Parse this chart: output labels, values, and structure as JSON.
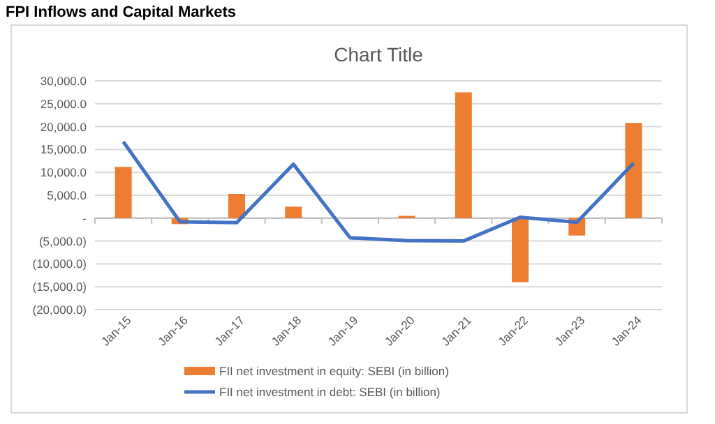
{
  "chart_data": {
    "type": "bar",
    "title": "Chart Title",
    "subtitle": "FPI Inflows and Capital Markets",
    "categories": [
      "Jan-15",
      "Jan-16",
      "Jan-17",
      "Jan-18",
      "Jan-19",
      "Jan-20",
      "Jan-21",
      "Jan-22",
      "Jan-23",
      "Jan-24"
    ],
    "series": [
      {
        "name": "FII net investment in equity: SEBI (in billion)",
        "color": "#ed7d31",
        "values": [
          11200,
          -1300,
          5300,
          2500,
          0,
          500,
          27500,
          -14000,
          -3800,
          20800
        ]
      },
      {
        "name": "FII net investment in debt: SEBI (in billion)",
        "type": "line",
        "color": "#4472c4",
        "values": [
          16700,
          -800,
          -1000,
          11800,
          -4300,
          -4900,
          -5000,
          200,
          -900,
          12000
        ]
      }
    ],
    "ylim": [
      -20000,
      30000
    ],
    "yticks": [
      {
        "value": -20000,
        "label": "(20,000.0)"
      },
      {
        "value": -15000,
        "label": "(15,000.0)"
      },
      {
        "value": -10000,
        "label": "(10,000.0)"
      },
      {
        "value": -5000,
        "label": "(5,000.0)"
      },
      {
        "value": 0,
        "label": "-"
      },
      {
        "value": 5000,
        "label": "5,000.0"
      },
      {
        "value": 10000,
        "label": "10,000.0"
      },
      {
        "value": 15000,
        "label": "15,000.0"
      },
      {
        "value": 20000,
        "label": "20,000.0"
      },
      {
        "value": 25000,
        "label": "25,000.0"
      },
      {
        "value": 30000,
        "label": "30,000.0"
      }
    ],
    "grid": "y",
    "legend": "bottom",
    "marker": "none"
  }
}
